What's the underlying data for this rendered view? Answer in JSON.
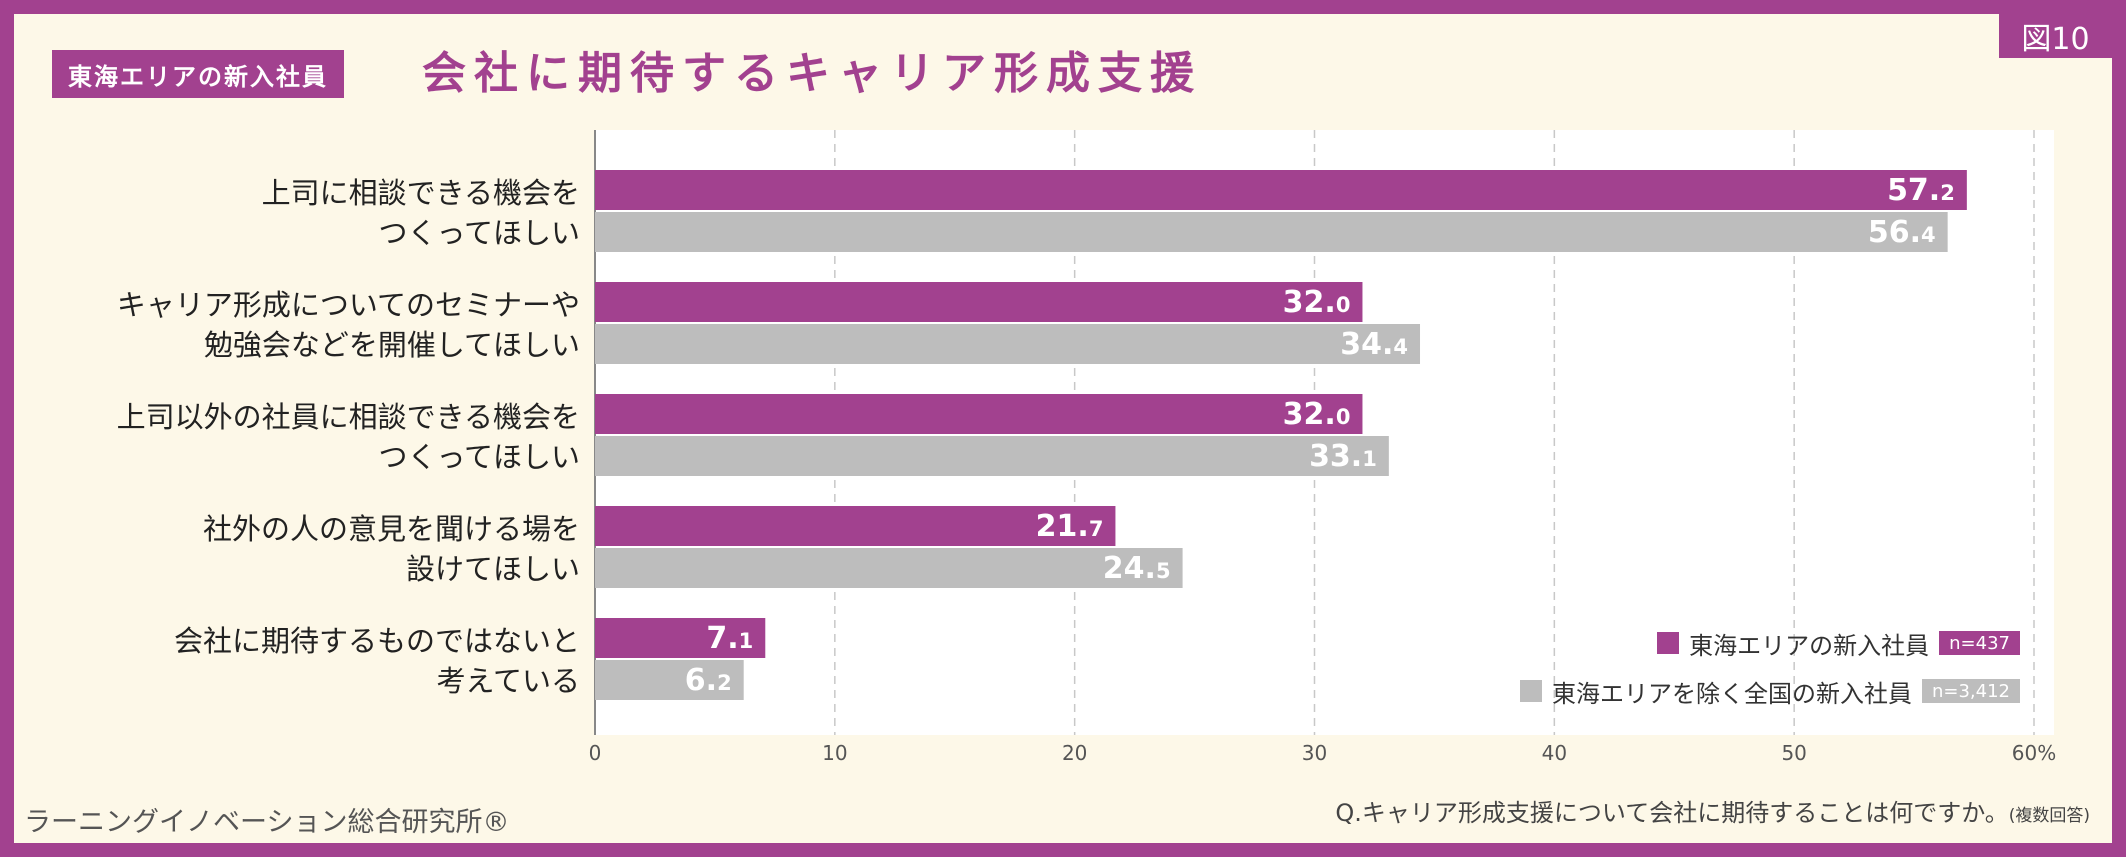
{
  "badge": "図10",
  "title_tag": "東海エリアの新入社員",
  "title": "会社に期待するキャリア形成支援",
  "footer_left": "ラーニングイノベーション総合研究所®",
  "question": "Q.キャリア形成支援について会社に期待することは何ですか。",
  "question_note": "(複数回答)",
  "colors": {
    "primary": "#a2418f",
    "secondary": "#bdbdbd",
    "background": "#fdf8e8",
    "plot_background": "#ffffff"
  },
  "legend": [
    {
      "label": "東海エリアの新入社員",
      "n": "n=437"
    },
    {
      "label": "東海エリアを除く全国の新入社員",
      "n": "n=3,412"
    }
  ],
  "chart_data": {
    "type": "bar",
    "orientation": "horizontal",
    "categories": [
      [
        "上司に相談できる機会を",
        "つくってほしい"
      ],
      [
        "キャリア形成についてのセミナーや",
        "勉強会などを開催してほしい"
      ],
      [
        "上司以外の社員に相談できる機会を",
        "つくってほしい"
      ],
      [
        "社外の人の意見を聞ける場を",
        "設けてほしい"
      ],
      [
        "会社に期待するものではないと",
        "考えている"
      ]
    ],
    "series": [
      {
        "name": "東海エリアの新入社員",
        "values": [
          57.2,
          32.0,
          32.0,
          21.7,
          7.1
        ]
      },
      {
        "name": "東海エリアを除く全国の新入社員",
        "values": [
          56.4,
          34.4,
          33.1,
          24.5,
          6.2
        ]
      }
    ],
    "xlim": [
      0,
      60
    ],
    "xticks": [
      0,
      10,
      20,
      30,
      40,
      50,
      60
    ],
    "xtick_suffix": "%",
    "grid": "vertical-dashed",
    "legend_position": "bottom-right"
  }
}
